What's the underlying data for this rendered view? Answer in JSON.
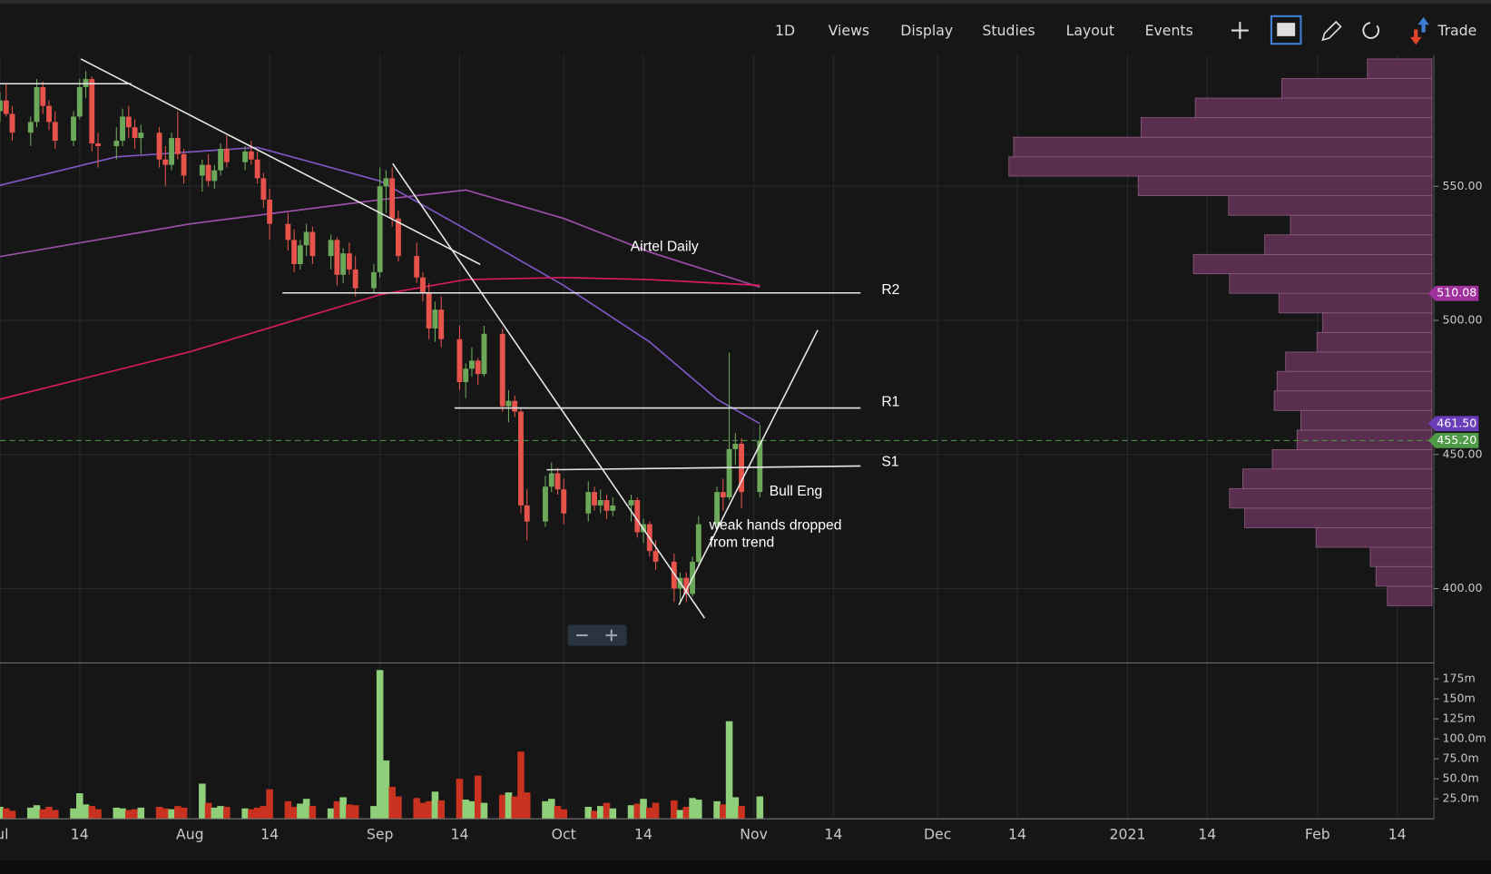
{
  "toolbar": {
    "items": [
      "1D",
      "Views",
      "Display",
      "Studies",
      "Layout",
      "Events"
    ],
    "trade": "Trade"
  },
  "chart_data": {
    "type": "candlestick",
    "annotations": [
      "Airtel Daily",
      "R2",
      "R1",
      "S1",
      "Bull Eng",
      "weak hands dropped",
      "from trend"
    ],
    "xlim": [
      "2020-07-01",
      "2021-02-20"
    ],
    "xticks": [
      {
        "value": "2020-07-01",
        "label": "Jul"
      },
      {
        "value": "2020-07-14",
        "label": "14"
      },
      {
        "value": "2020-08-01",
        "label": "Aug"
      },
      {
        "value": "2020-08-14",
        "label": "14"
      },
      {
        "value": "2020-09-01",
        "label": "Sep"
      },
      {
        "value": "2020-09-14",
        "label": "14"
      },
      {
        "value": "2020-10-01",
        "label": "Oct"
      },
      {
        "value": "2020-10-14",
        "label": "14"
      },
      {
        "value": "2020-11-01",
        "label": "Nov"
      },
      {
        "value": "2020-11-14",
        "label": "14"
      },
      {
        "value": "2020-12-01",
        "label": "Dec"
      },
      {
        "value": "2020-12-14",
        "label": "14"
      },
      {
        "value": "2021-01-01",
        "label": "2021"
      },
      {
        "value": "2021-01-14",
        "label": "14"
      },
      {
        "value": "2021-02-01",
        "label": "Feb"
      },
      {
        "value": "2021-02-14",
        "label": "14"
      }
    ],
    "ylim": [
      372.3,
      598.9
    ],
    "yticks": [
      {
        "value": 400,
        "label": "400.00"
      },
      {
        "value": 450,
        "label": "450.00"
      },
      {
        "value": 500,
        "label": "500.00"
      },
      {
        "value": 550,
        "label": "550.00"
      }
    ],
    "grid": true,
    "up_color": "#6ca85a",
    "down_color": "#e5534b",
    "volume_up_color": "#8fcf7a",
    "volume_down_color": "#c9321f",
    "x": [
      "2020-07-01",
      "2020-07-02",
      "2020-07-03",
      "2020-07-06",
      "2020-07-07",
      "2020-07-08",
      "2020-07-09",
      "2020-07-10",
      "2020-07-13",
      "2020-07-14",
      "2020-07-15",
      "2020-07-16",
      "2020-07-17",
      "2020-07-20",
      "2020-07-21",
      "2020-07-22",
      "2020-07-23",
      "2020-07-24",
      "2020-07-27",
      "2020-07-28",
      "2020-07-29",
      "2020-07-30",
      "2020-07-31",
      "2020-08-03",
      "2020-08-04",
      "2020-08-05",
      "2020-08-06",
      "2020-08-07",
      "2020-08-10",
      "2020-08-11",
      "2020-08-12",
      "2020-08-13",
      "2020-08-14",
      "2020-08-17",
      "2020-08-18",
      "2020-08-19",
      "2020-08-20",
      "2020-08-21",
      "2020-08-24",
      "2020-08-25",
      "2020-08-26",
      "2020-08-27",
      "2020-08-28",
      "2020-08-31",
      "2020-09-01",
      "2020-09-02",
      "2020-09-03",
      "2020-09-04",
      "2020-09-07",
      "2020-09-08",
      "2020-09-09",
      "2020-09-10",
      "2020-09-11",
      "2020-09-14",
      "2020-09-15",
      "2020-09-16",
      "2020-09-17",
      "2020-09-18",
      "2020-09-21",
      "2020-09-22",
      "2020-09-23",
      "2020-09-24",
      "2020-09-25",
      "2020-09-28",
      "2020-09-29",
      "2020-09-30",
      "2020-10-01",
      "2020-10-05",
      "2020-10-06",
      "2020-10-07",
      "2020-10-08",
      "2020-10-09",
      "2020-10-12",
      "2020-10-13",
      "2020-10-14",
      "2020-10-15",
      "2020-10-16",
      "2020-10-19",
      "2020-10-20",
      "2020-10-21",
      "2020-10-22",
      "2020-10-23",
      "2020-10-26",
      "2020-10-27",
      "2020-10-28",
      "2020-10-29",
      "2020-10-30",
      "2020-11-02"
    ],
    "open": [
      578,
      582,
      577,
      570,
      574,
      587,
      580,
      574,
      567,
      576,
      587,
      590,
      566,
      565,
      567,
      576,
      572,
      568,
      570,
      560,
      558,
      568,
      562,
      554,
      558,
      552,
      556,
      564,
      559,
      563,
      560,
      553,
      545,
      536,
      530,
      521,
      528,
      533,
      524,
      530,
      517,
      525,
      519,
      512,
      518,
      550,
      553,
      538,
      524,
      516,
      510,
      497,
      504,
      493,
      477,
      482,
      485,
      480,
      495,
      468,
      470,
      466,
      431,
      425,
      438,
      443,
      437,
      428,
      436,
      431,
      433,
      429,
      431,
      433,
      421,
      424,
      414,
      410,
      400,
      404,
      398,
      410,
      424,
      436,
      434,
      452,
      454,
      436
    ],
    "high": [
      585,
      588,
      580,
      576,
      590,
      589,
      582,
      578,
      578,
      590,
      593,
      591,
      570,
      572,
      579,
      580,
      575,
      573,
      572,
      565,
      570,
      578,
      564,
      560,
      562,
      558,
      566,
      569,
      565,
      567,
      563,
      555,
      549,
      540,
      534,
      530,
      536,
      535,
      532,
      531,
      527,
      529,
      524,
      521,
      557,
      556,
      557,
      541,
      529,
      518,
      514,
      507,
      509,
      498,
      484,
      490,
      486,
      498,
      497,
      474,
      472,
      467,
      437,
      442,
      447,
      445,
      441,
      440,
      438,
      437,
      435,
      434,
      435,
      434,
      426,
      425,
      418,
      413,
      406,
      406,
      412,
      427,
      438,
      441,
      488,
      458,
      456,
      461
    ],
    "low": [
      574,
      576,
      567,
      565,
      572,
      577,
      571,
      564,
      565,
      575,
      583,
      563,
      557,
      560,
      565,
      568,
      564,
      562,
      557,
      550,
      556,
      560,
      551,
      548,
      550,
      549,
      554,
      557,
      556,
      558,
      551,
      542,
      530,
      526,
      518,
      519,
      524,
      521,
      519,
      513,
      514,
      517,
      509,
      510,
      516,
      540,
      535,
      522,
      514,
      507,
      493,
      492,
      490,
      474,
      471,
      479,
      476,
      479,
      466,
      462,
      464,
      428,
      418,
      423,
      436,
      435,
      424,
      425,
      429,
      428,
      426,
      427,
      425,
      419,
      417,
      412,
      407,
      395,
      395,
      395,
      397,
      408,
      422,
      429,
      433,
      446,
      430,
      434
    ],
    "close": [
      582,
      577,
      570,
      574,
      587,
      580,
      574,
      567,
      576,
      587,
      590,
      566,
      565,
      567,
      576,
      572,
      568,
      570,
      560,
      558,
      568,
      562,
      554,
      558,
      552,
      556,
      564,
      559,
      563,
      560,
      553,
      545,
      536,
      530,
      521,
      528,
      533,
      524,
      530,
      517,
      525,
      519,
      512,
      518,
      550,
      553,
      538,
      524,
      516,
      510,
      497,
      504,
      493,
      477,
      482,
      485,
      480,
      495,
      468,
      470,
      466,
      431,
      425,
      438,
      443,
      437,
      428,
      436,
      431,
      433,
      429,
      431,
      433,
      421,
      424,
      414,
      410,
      400,
      404,
      398,
      410,
      424,
      436,
      434,
      452,
      454,
      436,
      455.2
    ],
    "volume": [
      15,
      13,
      10,
      14,
      17,
      12,
      15,
      11,
      13,
      32,
      18,
      16,
      12,
      14,
      13,
      11,
      12,
      14,
      15,
      13,
      12,
      16,
      14,
      44,
      20,
      14,
      16,
      15,
      13,
      12,
      14,
      16,
      37,
      22,
      15,
      19,
      25,
      16,
      13,
      22,
      27,
      18,
      17,
      16,
      186,
      73,
      40,
      28,
      26,
      20,
      22,
      34,
      23,
      50,
      24,
      22,
      54,
      20,
      30,
      33,
      28,
      84,
      33,
      22,
      25,
      16,
      12,
      15,
      10,
      16,
      20,
      13,
      17,
      19,
      25,
      14,
      20,
      23,
      11,
      15,
      26,
      24,
      22,
      18,
      122,
      27,
      16,
      28
    ],
    "volume_ylim": [
      0,
      195
    ],
    "volume_yticks": [
      {
        "value": 25,
        "label": "25.0m"
      },
      {
        "value": 50,
        "label": "50.0m"
      },
      {
        "value": 75,
        "label": "75.0m"
      },
      {
        "value": 100,
        "label": "100.0m"
      },
      {
        "value": 125,
        "label": "125m"
      },
      {
        "value": 150,
        "label": "150m"
      },
      {
        "value": 175,
        "label": "175m"
      }
    ],
    "overlays": [
      {
        "color": "#7e57c2",
        "x": [
          "2020-07-01",
          "2020-07-20",
          "2020-08-12",
          "2020-09-01",
          "2020-09-15",
          "2020-10-01",
          "2020-10-15",
          "2020-10-26",
          "2020-11-02"
        ],
        "values": [
          550.4,
          561,
          564.5,
          552,
          534,
          513,
          492,
          470.6,
          461.5
        ]
      },
      {
        "color": "#9c4fa8",
        "x": [
          "2020-07-01",
          "2020-08-01",
          "2020-09-01",
          "2020-09-15",
          "2020-10-01",
          "2020-10-15",
          "2020-11-02"
        ],
        "values": [
          523.8,
          536,
          545,
          548.6,
          538,
          525.5,
          512.4
        ]
      },
      {
        "color": "#d81b60",
        "x": [
          "2020-07-01",
          "2020-08-01",
          "2020-09-01",
          "2020-09-15",
          "2020-10-01",
          "2020-10-15",
          "2020-11-02"
        ],
        "values": [
          470.6,
          488.3,
          509.6,
          515.2,
          516,
          515.2,
          513.1
        ]
      }
    ],
    "price_markers": [
      {
        "value": 510.08,
        "color": "#a0309c"
      },
      {
        "value": 461.5,
        "label": "461.50",
        "color": "#6a3db8"
      },
      {
        "value": 455.2,
        "label": "455.20",
        "color": "#4f9a46",
        "dashed_line": true
      }
    ],
    "volume_profile": {
      "color": "#5a2e4e",
      "bins": [
        393.6,
        400.9,
        408.2,
        415.4,
        422.7,
        430.0,
        437.3,
        444.6,
        451.8,
        459.1,
        466.4,
        473.7,
        481.0,
        488.2,
        495.5,
        502.8,
        510.1,
        517.4,
        524.6,
        531.9,
        539.2,
        546.5,
        553.8,
        561.0,
        568.3,
        575.6,
        582.9,
        590.2,
        597.5
      ],
      "values": [
        47,
        59,
        65,
        122,
        197,
        213,
        199,
        168,
        142,
        138,
        166,
        163,
        154,
        121,
        115,
        161,
        213,
        251,
        176,
        149,
        214,
        309,
        445,
        440,
        306,
        249,
        158,
        68
      ]
    }
  }
}
